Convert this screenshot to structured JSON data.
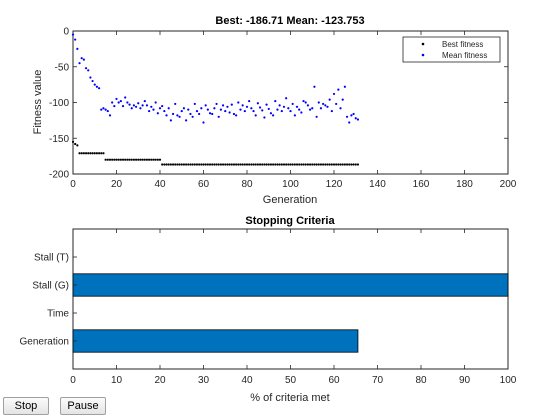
{
  "fitness_plot": {
    "title": "Best: -186.71 Mean: -123.753",
    "xlabel": "Generation",
    "ylabel": "Fitness value",
    "legend": [
      "Best fitness",
      "Mean fitness"
    ]
  },
  "criteria_plot": {
    "title": "Stopping Criteria",
    "xlabel": "% of criteria met"
  },
  "buttons": {
    "stop": "Stop",
    "pause": "Pause"
  },
  "chart_data": [
    {
      "type": "scatter",
      "title": "Best: -186.71 Mean: -123.753",
      "xlabel": "Generation",
      "ylabel": "Fitness value",
      "xlim": [
        0,
        200
      ],
      "ylim": [
        -200,
        0
      ],
      "xticks": [
        0,
        20,
        40,
        60,
        80,
        100,
        120,
        140,
        160,
        180,
        200
      ],
      "yticks": [
        0,
        -50,
        -100,
        -150,
        -200
      ],
      "legend_position": "top-right",
      "grid": false,
      "series": [
        {
          "name": "Best fitness",
          "color": "#000000",
          "segments": [
            {
              "x": [
                0,
                1,
                2
              ],
              "y": [
                -155,
                -158,
                -160
              ]
            },
            {
              "from": 3,
              "to": 14,
              "y": -171
            },
            {
              "from": 15,
              "to": 40,
              "y": -180
            },
            {
              "from": 41,
              "to": 131,
              "y": -186.71
            }
          ]
        },
        {
          "name": "Mean fitness",
          "color": "#0000ff",
          "x_start": 0,
          "y": [
            -5,
            -12,
            -25,
            -45,
            -38,
            -40,
            -52,
            -55,
            -65,
            -70,
            -75,
            -78,
            -80,
            -110,
            -108,
            -110,
            -112,
            -118,
            -100,
            -105,
            -95,
            -100,
            -98,
            -105,
            -93,
            -100,
            -103,
            -108,
            -104,
            -106,
            -101,
            -108,
            -104,
            -98,
            -104,
            -112,
            -106,
            -110,
            -100,
            -115,
            -108,
            -105,
            -112,
            -118,
            -108,
            -125,
            -116,
            -102,
            -118,
            -120,
            -112,
            -108,
            -125,
            -110,
            -116,
            -120,
            -102,
            -112,
            -116,
            -108,
            -128,
            -104,
            -110,
            -115,
            -116,
            -108,
            -102,
            -120,
            -110,
            -104,
            -112,
            -106,
            -114,
            -103,
            -116,
            -118,
            -100,
            -110,
            -104,
            -112,
            -106,
            -98,
            -108,
            -112,
            -118,
            -101,
            -107,
            -111,
            -121,
            -103,
            -109,
            -115,
            -118,
            -98,
            -110,
            -104,
            -112,
            -106,
            -94,
            -108,
            -112,
            -102,
            -118,
            -106,
            -110,
            -114,
            -98,
            -100,
            -104,
            -110,
            -108,
            -78,
            -120,
            -100,
            -108,
            -102,
            -104,
            -106,
            -96,
            -112,
            -88,
            -102,
            -82,
            -108,
            -96,
            -78,
            -120,
            -128,
            -118,
            -116,
            -122,
            -123.753
          ]
        }
      ]
    },
    {
      "type": "bar",
      "orientation": "horizontal",
      "title": "Stopping Criteria",
      "xlabel": "% of criteria met",
      "xlim": [
        0,
        100
      ],
      "xticks": [
        0,
        10,
        20,
        30,
        40,
        50,
        60,
        70,
        80,
        90,
        100
      ],
      "categories": [
        "Stall (T)",
        "Stall (G)",
        "Time",
        "Generation"
      ],
      "values": [
        0,
        100,
        0,
        65.5
      ],
      "color": "#0072bd"
    }
  ]
}
